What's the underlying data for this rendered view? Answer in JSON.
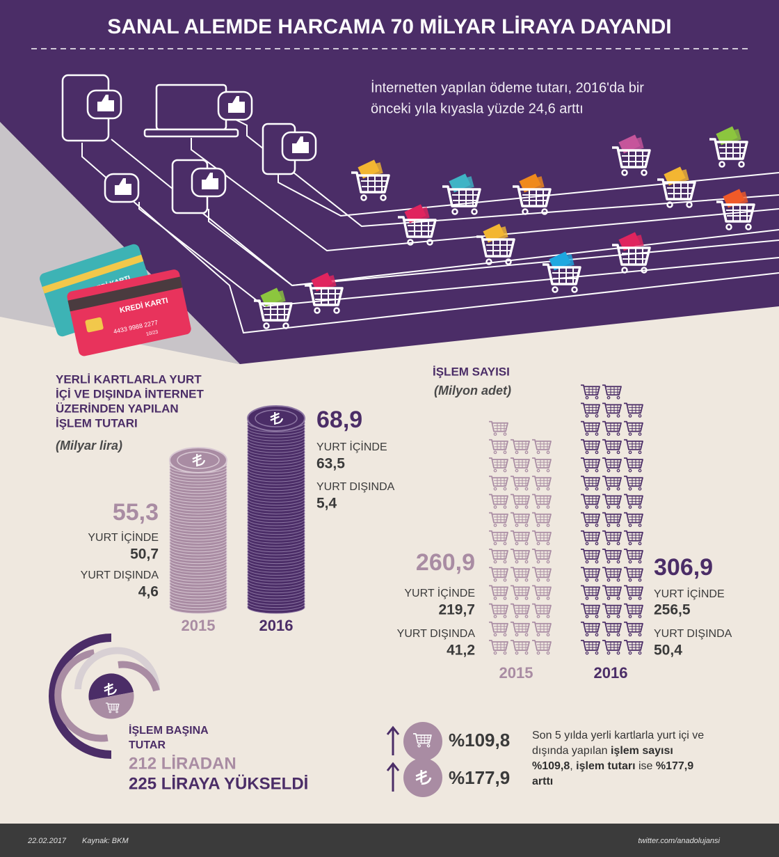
{
  "header": {
    "title": "SANAL ALEMDE HARCAMA 70 MİLYAR LİRAYA DAYANDI"
  },
  "intro": {
    "lines": [
      "İnternetten yapılan ödeme tutarı, 2016'da bir",
      "önceki yıla kıyasla yüzde 24,6 arttı"
    ]
  },
  "cards": [
    {
      "label": "KREDİ KARTI"
    },
    {
      "label": "KREDİ KARTI",
      "number": "4433 9988 2277",
      "expiry": "10/23"
    }
  ],
  "amount": {
    "title_lines": [
      "YERLİ KARTLARLA YURT",
      "İÇİ VE DIŞINDA İNTERNET",
      "ÜZERİNDEN YAPILAN",
      "İŞLEM TUTARI"
    ],
    "unit": "(Milyar lira)",
    "years": [
      {
        "year": "2015",
        "total": "55,3",
        "domestic_label": "YURT İÇİNDE",
        "domestic": "50,7",
        "abroad_label": "YURT DIŞINDA",
        "abroad": "4,6"
      },
      {
        "year": "2016",
        "total": "68,9",
        "domestic_label": "YURT İÇİNDE",
        "domestic": "63,5",
        "abroad_label": "YURT DIŞINDA",
        "abroad": "5,4"
      }
    ]
  },
  "count": {
    "title": "İŞLEM SAYISI",
    "unit": "(Milyon adet)",
    "years": [
      {
        "year": "2015",
        "total": "260,9",
        "domestic_label": "YURT İÇİNDE",
        "domestic": "219,7",
        "abroad_label": "YURT DIŞINDA",
        "abroad": "41,2"
      },
      {
        "year": "2016",
        "total": "306,9",
        "domestic_label": "YURT İÇİNDE",
        "domestic": "256,5",
        "abroad_label": "YURT DIŞINDA",
        "abroad": "50,4"
      }
    ]
  },
  "per_transaction": {
    "title_lines": [
      "İŞLEM BAŞINA",
      "TUTAR"
    ],
    "from": "212 LİRADAN",
    "to": "225 LİRAYA YÜKSELDİ"
  },
  "growth": {
    "count": "%109,8",
    "amount": "%177,9",
    "note": [
      {
        "text": "Son 5 yılda yerli kartlarla yurt içi ve dışında yapılan ",
        "bold": false
      },
      {
        "text": "işlem sayısı %109,8",
        "bold": true
      },
      {
        "text": ", ",
        "bold": false
      },
      {
        "text": "işlem tutarı",
        "bold": true
      },
      {
        "text": " ise ",
        "bold": false
      },
      {
        "text": "%177,9 arttı",
        "bold": true
      }
    ]
  },
  "footer": {
    "date": "22.02.2017",
    "source": "Kaynak: BKM",
    "social": "twitter.com/anadolujansi"
  }
}
